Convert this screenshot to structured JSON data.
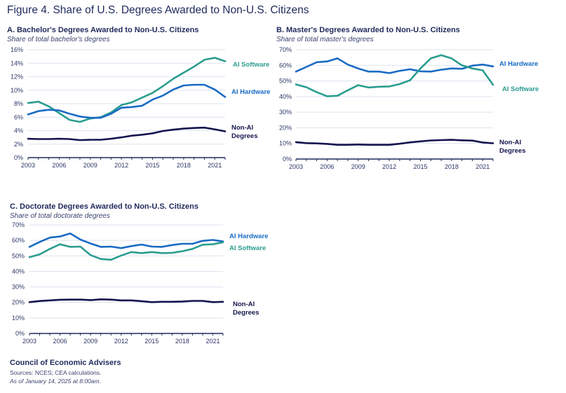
{
  "figure_title": "Figure 4. Share of U.S. Degrees Awarded to Non-U.S. Citizens",
  "colors": {
    "ai_software": "#2a9d8f",
    "ai_hardware": "#1a6bc4",
    "non_ai": "#14144f",
    "grid": "#dde3ef",
    "axis": "#1f2a5c"
  },
  "footer": {
    "org": "Council of Economic Advisers",
    "sources": "Sources: NCES; CEA calculations.",
    "as_of": "As of January 14, 2025 at 8:00am."
  },
  "chart_data": [
    {
      "type": "line",
      "id": "A",
      "title": "A. Bachelor's Degrees Awarded to Non-U.S. Citizens",
      "subtitle": "Share of total bachelor's degrees",
      "xlabel": "",
      "ylabel": "",
      "x": [
        2003,
        2004,
        2005,
        2006,
        2007,
        2008,
        2009,
        2010,
        2011,
        2012,
        2013,
        2014,
        2015,
        2016,
        2017,
        2018,
        2019,
        2020,
        2021,
        2022
      ],
      "xticks": [
        "2003",
        "2006",
        "2009",
        "2012",
        "2015",
        "2018",
        "2021"
      ],
      "ylim": [
        0,
        16
      ],
      "yticks": [
        0,
        2,
        4,
        6,
        8,
        10,
        12,
        14,
        16
      ],
      "ytick_labels": [
        "0%",
        "2%",
        "4%",
        "6%",
        "8%",
        "10%",
        "12%",
        "14%",
        "16%"
      ],
      "grid": true,
      "series": [
        {
          "name": "AI Software",
          "label_lines": [
            "AI Software"
          ],
          "color_key": "ai_software",
          "values": [
            8.1,
            8.3,
            7.6,
            6.6,
            5.6,
            5.3,
            5.8,
            6.0,
            6.7,
            7.8,
            8.2,
            8.9,
            9.6,
            10.6,
            11.7,
            12.6,
            13.5,
            14.5,
            14.8,
            14.3
          ]
        },
        {
          "name": "AI Hardware",
          "label_lines": [
            "AI Hardware"
          ],
          "color_key": "ai_hardware",
          "values": [
            6.4,
            6.9,
            7.1,
            7.0,
            6.5,
            6.1,
            5.9,
            5.9,
            6.5,
            7.4,
            7.5,
            7.7,
            8.6,
            9.2,
            10.1,
            10.7,
            10.8,
            10.8,
            10.1,
            9.0
          ]
        },
        {
          "name": "Non-AI Degrees",
          "label_lines": [
            "Non-AI",
            "Degrees"
          ],
          "color_key": "non_ai",
          "values": [
            2.8,
            2.75,
            2.75,
            2.8,
            2.75,
            2.6,
            2.65,
            2.65,
            2.8,
            3.0,
            3.25,
            3.4,
            3.6,
            3.95,
            4.15,
            4.3,
            4.4,
            4.45,
            4.2,
            3.9
          ]
        }
      ]
    },
    {
      "type": "line",
      "id": "B",
      "title": "B. Master's Degrees Awarded to Non-U.S. Citizens",
      "subtitle": "Share of total master's degrees",
      "xlabel": "",
      "ylabel": "",
      "x": [
        2003,
        2004,
        2005,
        2006,
        2007,
        2008,
        2009,
        2010,
        2011,
        2012,
        2013,
        2014,
        2015,
        2016,
        2017,
        2018,
        2019,
        2020,
        2021,
        2022
      ],
      "xticks": [
        "2003",
        "2006",
        "2009",
        "2012",
        "2015",
        "2018",
        "2021"
      ],
      "ylim": [
        0,
        70
      ],
      "yticks": [
        0,
        10,
        20,
        30,
        40,
        50,
        60,
        70
      ],
      "ytick_labels": [
        "0%",
        "10%",
        "20%",
        "30%",
        "40%",
        "50%",
        "60%",
        "70%"
      ],
      "grid": true,
      "series": [
        {
          "name": "AI Hardware",
          "label_lines": [
            "AI Hardware"
          ],
          "color_key": "ai_hardware",
          "values": [
            56,
            59,
            62,
            62.5,
            64.5,
            60.5,
            58,
            56,
            56,
            55,
            56.5,
            57.5,
            56.2,
            56,
            57.2,
            58,
            57.8,
            59.8,
            60.5,
            59.3
          ]
        },
        {
          "name": "AI Software",
          "label_lines": [
            "AI Software"
          ],
          "color_key": "ai_software",
          "values": [
            47.8,
            46,
            42.8,
            40.2,
            40.5,
            44,
            47.3,
            45.8,
            46.3,
            46.5,
            48,
            50.5,
            58,
            64.5,
            66.5,
            64.5,
            60,
            58,
            56.8,
            47.5
          ]
        },
        {
          "name": "Non-AI Degrees",
          "label_lines": [
            "Non-AI",
            "Degrees"
          ],
          "color_key": "non_ai",
          "values": [
            10.8,
            10.2,
            10,
            9.7,
            9.1,
            9.1,
            9.3,
            9.1,
            9.1,
            9.1,
            9.8,
            10.7,
            11.3,
            11.9,
            12.1,
            12.3,
            12.0,
            11.8,
            10.6,
            10.1
          ]
        }
      ]
    },
    {
      "type": "line",
      "id": "C",
      "title": "C. Doctorate Degrees Awarded to Non-U.S. Citizens",
      "subtitle": "Share of total doctorate degrees",
      "xlabel": "",
      "ylabel": "",
      "x": [
        2003,
        2004,
        2005,
        2006,
        2007,
        2008,
        2009,
        2010,
        2011,
        2012,
        2013,
        2014,
        2015,
        2016,
        2017,
        2018,
        2019,
        2020,
        2021,
        2022
      ],
      "xticks": [
        "2003",
        "2006",
        "2009",
        "2012",
        "2015",
        "2018",
        "2021"
      ],
      "ylim": [
        0,
        70
      ],
      "yticks": [
        0,
        10,
        20,
        30,
        40,
        50,
        60,
        70
      ],
      "ytick_labels": [
        "0%",
        "10%",
        "20%",
        "30%",
        "40%",
        "50%",
        "60%",
        "70%"
      ],
      "grid": true,
      "series": [
        {
          "name": "AI Hardware",
          "label_lines": [
            "AI Hardware"
          ],
          "color_key": "ai_hardware",
          "values": [
            55.8,
            59,
            61.8,
            62.5,
            64.5,
            60.5,
            58,
            55.8,
            56,
            55,
            56.3,
            57.3,
            56,
            55.8,
            57,
            57.8,
            57.8,
            59.7,
            60.3,
            59.3
          ]
        },
        {
          "name": "AI Software",
          "label_lines": [
            "AI Software"
          ],
          "color_key": "ai_software",
          "values": [
            49.2,
            51,
            54.5,
            57.5,
            55.8,
            56,
            50.5,
            48,
            47.5,
            50.2,
            52.5,
            51.8,
            52.5,
            51.8,
            52,
            53,
            54.5,
            57.2,
            57.5,
            58.8
          ]
        },
        {
          "name": "Non-AI Degrees",
          "label_lines": [
            "Non-AI",
            "Degrees"
          ],
          "color_key": "non_ai",
          "values": [
            20.2,
            20.9,
            21.3,
            21.7,
            21.8,
            21.8,
            21.5,
            22,
            21.8,
            21.3,
            21.3,
            20.8,
            20.2,
            20.4,
            20.4,
            20.6,
            21,
            21,
            20.2,
            20.4
          ]
        }
      ]
    }
  ]
}
